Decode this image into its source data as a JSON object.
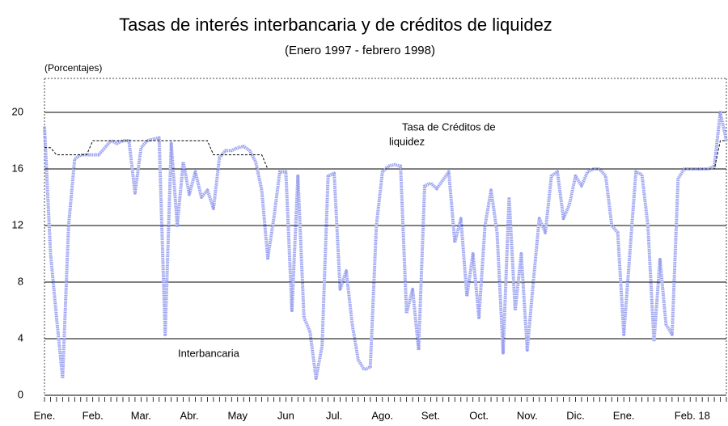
{
  "chart_data": {
    "type": "line",
    "title": "Tasas de interés interbancaria y de créditos de liquidez",
    "subtitle": "(Enero 1997 - febrero 1998)",
    "y_unit_label": "(Porcentajes)",
    "annotations": [
      "Tasa de Créditos de",
      "liquidez",
      "Interbancaria"
    ],
    "categories": [
      "Ene.",
      null,
      null,
      null,
      null,
      null,
      null,
      null,
      "Feb.",
      null,
      null,
      null,
      null,
      null,
      null,
      null,
      "Mar.",
      null,
      null,
      null,
      null,
      null,
      null,
      null,
      "Abr.",
      null,
      null,
      null,
      null,
      null,
      null,
      null,
      "May",
      null,
      null,
      null,
      null,
      null,
      null,
      null,
      "Jun",
      null,
      null,
      null,
      null,
      null,
      null,
      null,
      "Jul.",
      null,
      null,
      null,
      null,
      null,
      null,
      null,
      "Ago.",
      null,
      null,
      null,
      null,
      null,
      null,
      null,
      "Set.",
      null,
      null,
      null,
      null,
      null,
      null,
      null,
      "Oct.",
      null,
      null,
      null,
      null,
      null,
      null,
      null,
      "Nov.",
      null,
      null,
      null,
      null,
      null,
      null,
      null,
      "Dic.",
      null,
      null,
      null,
      null,
      null,
      null,
      null,
      "Ene.",
      null,
      null,
      null,
      null,
      null,
      null,
      null,
      "Feb. 18",
      null,
      null,
      null,
      null,
      null,
      null,
      null,
      null,
      null
    ],
    "series": [
      {
        "name": "Interbancaria",
        "color": "#9aa2f0",
        "style": "thick",
        "values": [
          19,
          10,
          5.5,
          1.2,
          12,
          16.7,
          17,
          17,
          17,
          17,
          17.5,
          18,
          17.8,
          18,
          18,
          14.3,
          17.5,
          18,
          18.1,
          18.2,
          4.3,
          17.8,
          12,
          16.5,
          14.2,
          15.8,
          14,
          14.5,
          13.2,
          16.8,
          17.3,
          17.3,
          17.5,
          17.6,
          17.3,
          16.5,
          14.5,
          9.7,
          12.5,
          15.8,
          15.8,
          6,
          15.5,
          5.5,
          4.5,
          1.2,
          3.5,
          15.5,
          15.7,
          7.5,
          8.8,
          5,
          2.5,
          1.8,
          2,
          12,
          15.8,
          16.2,
          16.3,
          16.2,
          5.8,
          7.5,
          3.2,
          14.8,
          15,
          14.6,
          15.2,
          15.8,
          10.8,
          12.5,
          7,
          10,
          5.5,
          12,
          14.5,
          11.5,
          3,
          14,
          6,
          10,
          3.2,
          8,
          12.5,
          11.5,
          15.5,
          15.8,
          12.5,
          13.5,
          15.5,
          14.8,
          15.8,
          16,
          16,
          15.5,
          12,
          11.5,
          4.3,
          10,
          15.8,
          15.6,
          12,
          3.8,
          9.6,
          5,
          4.3,
          15.3,
          16,
          16,
          16,
          16,
          16,
          16.2,
          20,
          18
        ]
      },
      {
        "name": "Tasa de Créditos de liquidez",
        "color": "#000000",
        "style": "dashed",
        "values": [
          17.5,
          17.5,
          17,
          17,
          17,
          17,
          17,
          17,
          18,
          18,
          18,
          18,
          18,
          18,
          18,
          18,
          18,
          18,
          18,
          18,
          18,
          18,
          18,
          18,
          18,
          18,
          18,
          18,
          17,
          17,
          17,
          17,
          17,
          17,
          17,
          17,
          17,
          16,
          16,
          16,
          16,
          16,
          16,
          16,
          16,
          16,
          16,
          16,
          16,
          16,
          16,
          16,
          16,
          16,
          16,
          16,
          16,
          16,
          16,
          16,
          16,
          16,
          16,
          16,
          16,
          16,
          16,
          16,
          16,
          16,
          16,
          16,
          16,
          16,
          16,
          16,
          16,
          16,
          16,
          16,
          16,
          16,
          16,
          16,
          16,
          16,
          16,
          16,
          16,
          16,
          16,
          16,
          16,
          16,
          16,
          16,
          16,
          16,
          16,
          16,
          16,
          16,
          16,
          16,
          16,
          16,
          16,
          16,
          16,
          16,
          16,
          16,
          18,
          18
        ]
      }
    ],
    "ylim": [
      0,
      22.4
    ],
    "yticks": [
      0,
      4,
      8,
      12,
      16,
      20
    ],
    "grid": true
  }
}
